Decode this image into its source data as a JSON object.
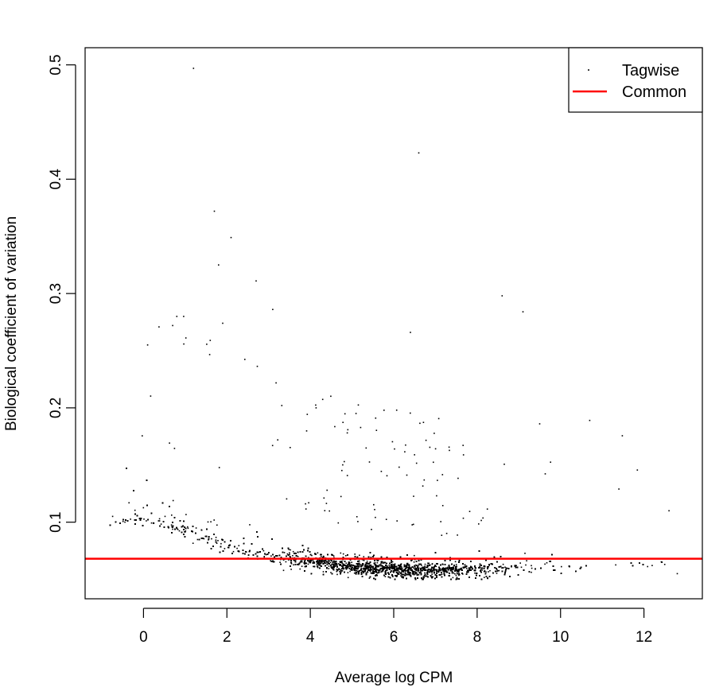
{
  "chart_data": {
    "type": "scatter",
    "title": "",
    "xlabel": "Average log CPM",
    "ylabel": "Biological coefficient of variation",
    "xlim": [
      -1.4,
      13.4
    ],
    "ylim": [
      0.033,
      0.515
    ],
    "x_ticks": [
      0,
      2,
      4,
      6,
      8,
      10,
      12
    ],
    "y_ticks": [
      0.1,
      0.2,
      0.3,
      0.4,
      0.5
    ],
    "grid": false,
    "legend": {
      "position": "top-right",
      "entries": [
        {
          "label": "Tagwise",
          "symbol": "point",
          "color": "#000000"
        },
        {
          "label": "Common",
          "symbol": "line",
          "color": "#ff0000"
        }
      ]
    },
    "series": [
      {
        "name": "Tagwise",
        "color": "#000000",
        "mark": "point",
        "point_count": 9000,
        "trend": [
          [
            -0.8,
            0.1
          ],
          [
            0,
            0.105
          ],
          [
            1,
            0.093
          ],
          [
            2,
            0.08
          ],
          [
            3,
            0.072
          ],
          [
            4,
            0.066
          ],
          [
            5,
            0.061
          ],
          [
            6,
            0.059
          ],
          [
            7,
            0.058
          ],
          [
            8,
            0.059
          ],
          [
            9,
            0.06
          ],
          [
            10,
            0.061
          ],
          [
            11,
            0.063
          ],
          [
            12.8,
            0.064
          ]
        ],
        "notable_points": [
          {
            "x": 1.2,
            "y": 0.497
          },
          {
            "x": 6.6,
            "y": 0.423
          },
          {
            "x": 1.7,
            "y": 0.372
          },
          {
            "x": 2.1,
            "y": 0.349
          },
          {
            "x": 1.8,
            "y": 0.325
          },
          {
            "x": 2.7,
            "y": 0.311
          },
          {
            "x": 8.6,
            "y": 0.298
          },
          {
            "x": 9.1,
            "y": 0.284
          },
          {
            "x": 3.1,
            "y": 0.286
          },
          {
            "x": 1.9,
            "y": 0.274
          },
          {
            "x": 0.7,
            "y": 0.272
          },
          {
            "x": 6.4,
            "y": 0.266
          },
          {
            "x": 0.1,
            "y": 0.255
          },
          {
            "x": 1.6,
            "y": 0.259
          },
          {
            "x": 10.7,
            "y": 0.189
          },
          {
            "x": 9.5,
            "y": 0.186
          },
          {
            "x": 11.4,
            "y": 0.129
          },
          {
            "x": 12.6,
            "y": 0.11
          },
          {
            "x": 12.8,
            "y": 0.055
          }
        ]
      },
      {
        "name": "Common",
        "color": "#ff0000",
        "mark": "hline",
        "y": 0.068
      }
    ]
  }
}
